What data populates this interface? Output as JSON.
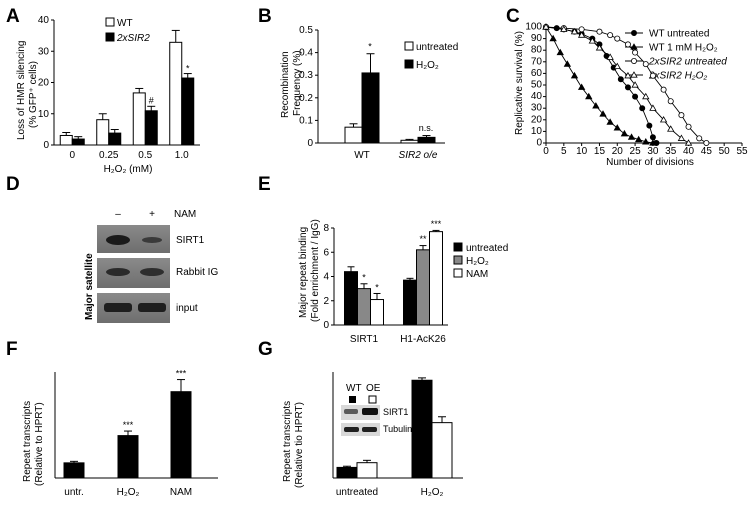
{
  "colors": {
    "black": "#000000",
    "gray": "#888888",
    "white": "#ffffff"
  },
  "chart_data": [
    {
      "panel": "A",
      "type": "bar",
      "ylabel_line1": "Loss of HMR silencing",
      "ylabel_line2": "(% GFP⁺ cells)",
      "xlabel": "H₂O₂ (mM)",
      "categories": [
        "0",
        "0.25",
        "0.5",
        "1.0"
      ],
      "yticks": [
        "0",
        "10",
        "20",
        "30",
        "40"
      ],
      "ylim": [
        0,
        42
      ],
      "series": [
        {
          "name": "WT",
          "values": [
            3.2,
            8.5,
            17.5,
            34.5
          ],
          "errors": [
            1.0,
            2.0,
            1.5,
            4.0
          ]
        },
        {
          "name": "2xSIR2",
          "values": [
            2.0,
            4.0,
            11.5,
            22.5
          ],
          "errors": [
            0.8,
            1.2,
            1.5,
            1.5
          ]
        }
      ],
      "annotations": [
        "#",
        "*"
      ]
    },
    {
      "panel": "B",
      "type": "bar",
      "ylabel_line1": "Recombination",
      "ylabel_line2": "Frequency (%)",
      "categories": [
        "WT",
        "SIR2 o/e"
      ],
      "yticks": [
        "0",
        "0.1",
        "0.2",
        "0.3",
        "0.4",
        "0.5"
      ],
      "ylim": [
        0,
        0.5
      ],
      "series": [
        {
          "name": "untreated",
          "values": [
            0.07,
            0.012
          ],
          "errors": [
            0.015,
            0.004
          ]
        },
        {
          "name": "H₂O₂",
          "values": [
            0.31,
            0.025
          ],
          "errors": [
            0.085,
            0.008
          ]
        }
      ],
      "annotations": [
        "*",
        "n.s."
      ]
    },
    {
      "panel": "C",
      "type": "line",
      "ylabel": "Replicative survival (%)",
      "xlabel": "Number of divisions",
      "xticks": [
        "0",
        "5",
        "10",
        "15",
        "20",
        "25",
        "30",
        "35",
        "40",
        "45",
        "50",
        "55"
      ],
      "yticks": [
        "0",
        "10",
        "20",
        "30",
        "40",
        "50",
        "60",
        "70",
        "80",
        "90",
        "100"
      ],
      "xlim": [
        0,
        55
      ],
      "ylim": [
        0,
        100
      ],
      "series": [
        {
          "name": "WT untreated",
          "marker": "filled-circle",
          "x": [
            0,
            3,
            5,
            8,
            10,
            13,
            15,
            17,
            19,
            21,
            23,
            25,
            27,
            29,
            30,
            31
          ],
          "y": [
            100,
            99,
            98,
            96,
            94,
            90,
            85,
            75,
            65,
            55,
            48,
            40,
            30,
            15,
            5,
            0
          ]
        },
        {
          "name": "WT 1 mM H₂O₂",
          "marker": "filled-triangle",
          "x": [
            0,
            2,
            4,
            6,
            8,
            10,
            12,
            14,
            16,
            18,
            20,
            22,
            24,
            26,
            28,
            30
          ],
          "y": [
            100,
            90,
            78,
            68,
            58,
            48,
            40,
            32,
            25,
            18,
            13,
            8,
            5,
            3,
            1,
            0
          ]
        },
        {
          "name": "2xSIR2 untreated",
          "marker": "open-circle",
          "x": [
            0,
            5,
            10,
            15,
            18,
            20,
            23,
            25,
            28,
            30,
            33,
            35,
            38,
            40,
            43,
            45
          ],
          "y": [
            100,
            99,
            98,
            96,
            93,
            90,
            85,
            78,
            68,
            58,
            46,
            36,
            24,
            14,
            4,
            0
          ]
        },
        {
          "name": "2xSIR2 H₂O₂",
          "marker": "open-triangle",
          "x": [
            0,
            5,
            8,
            10,
            13,
            15,
            18,
            20,
            23,
            25,
            28,
            30,
            33,
            35,
            38,
            40
          ],
          "y": [
            100,
            98,
            96,
            93,
            88,
            82,
            74,
            66,
            58,
            50,
            40,
            30,
            20,
            12,
            4,
            0
          ]
        }
      ]
    },
    {
      "panel": "E",
      "type": "bar",
      "ylabel_line1": "Major repeat binding",
      "ylabel_line2": "(Fold enrichment / IgG)",
      "categories": [
        "SIRT1",
        "H1-AcK26"
      ],
      "yticks": [
        "0",
        "2",
        "4",
        "6",
        "8"
      ],
      "ylim": [
        0,
        8
      ],
      "series": [
        {
          "name": "untreated",
          "values": [
            4.4,
            3.7
          ],
          "errors": [
            0.4,
            0.15
          ]
        },
        {
          "name": "H₂O₂",
          "values": [
            3.0,
            6.2
          ],
          "errors": [
            0.4,
            0.35
          ]
        },
        {
          "name": "NAM",
          "values": [
            2.1,
            7.7
          ],
          "errors": [
            0.5,
            0.1
          ]
        }
      ],
      "annotations": [
        "*",
        "*",
        "**",
        "***"
      ]
    },
    {
      "panel": "F",
      "type": "bar",
      "ylabel_line1": "Repeat transcripts",
      "ylabel_line2": "(Relative to HPRT)",
      "categories": [
        "untr.",
        "H₂O₂",
        "NAM"
      ],
      "ylim": [
        0,
        7
      ],
      "series": [
        {
          "values": [
            1.0,
            2.8,
            5.7
          ],
          "errors": [
            0.1,
            0.3,
            0.8
          ]
        }
      ],
      "annotations": [
        "***",
        "***"
      ]
    },
    {
      "panel": "G",
      "type": "bar",
      "ylabel_line1": "Repeat transcripts",
      "ylabel_line2": "(Relative tio HPRT)",
      "categories": [
        "untreated",
        "H₂O₂"
      ],
      "ylim": [
        0,
        9
      ],
      "series": [
        {
          "name": "WT",
          "values": [
            0.9,
            8.3
          ],
          "errors": [
            0.1,
            0.2
          ]
        },
        {
          "name": "OE",
          "values": [
            1.3,
            4.7
          ],
          "errors": [
            0.2,
            0.5
          ]
        }
      ],
      "inset": {
        "headers": [
          "WT",
          "OE"
        ],
        "bands": [
          "SIRT1",
          "Tubulin"
        ]
      }
    }
  ],
  "panel_d": {
    "col_headers": [
      "–",
      "+"
    ],
    "treatment": "NAM",
    "rows": [
      "SIRT1",
      "Rabbit IG",
      "input"
    ],
    "side_label": "Major satellite"
  },
  "panel_labels": [
    "A",
    "B",
    "C",
    "D",
    "E",
    "F",
    "G"
  ]
}
